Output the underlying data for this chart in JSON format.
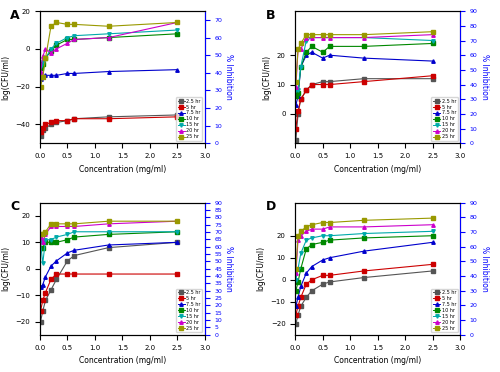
{
  "x": [
    0.01,
    0.05,
    0.1,
    0.2,
    0.3,
    0.5,
    0.625,
    1.25,
    2.5
  ],
  "panel_A": {
    "label": "A",
    "series": {
      "2.5 hr": {
        "color": "#555555",
        "marker": "s",
        "y": [
          -46,
          -43,
          -42,
          -40,
          -39,
          -38,
          -37,
          -36,
          -35
        ]
      },
      "5 hr": {
        "color": "#cc0000",
        "marker": "s",
        "y": [
          -44,
          -42,
          -40,
          -39,
          -38,
          -38,
          -37,
          -37,
          -36
        ]
      },
      "7.5 hr": {
        "color": "#0000cc",
        "marker": "^",
        "y": [
          -16,
          -15,
          -14,
          -14,
          -14,
          -13,
          -13,
          -12,
          -11
        ]
      },
      "10 hr": {
        "color": "#008800",
        "marker": "s",
        "y": [
          -10,
          -8,
          -5,
          -1,
          2,
          5,
          5,
          6,
          8
        ]
      },
      "15 hr": {
        "color": "#00aaaa",
        "marker": "v",
        "y": [
          -9,
          -7,
          -5,
          0,
          3,
          6,
          7,
          8,
          10
        ]
      },
      "20 hr": {
        "color": "#cc00cc",
        "marker": "^",
        "y": [
          -12,
          -4,
          0,
          -2,
          0,
          3,
          5,
          6,
          14
        ]
      },
      "25 hr": {
        "color": "#999900",
        "marker": "s",
        "y": [
          -20,
          -15,
          -5,
          12,
          14,
          13,
          13,
          12,
          14
        ]
      }
    },
    "ylim": [
      -50,
      20
    ],
    "yticks_left": [
      -40,
      -20,
      0,
      20
    ],
    "ylim_right": [
      0,
      75
    ],
    "yticks_right": [
      0,
      10,
      20,
      30,
      40,
      50,
      60,
      70
    ]
  },
  "panel_B": {
    "label": "B",
    "series": {
      "2.5 hr": {
        "color": "#555555",
        "marker": "s",
        "y": [
          -9,
          0,
          5,
          8,
          10,
          11,
          11,
          12,
          12
        ]
      },
      "5 hr": {
        "color": "#cc0000",
        "marker": "s",
        "y": [
          -5,
          1,
          5,
          8,
          10,
          10,
          10,
          11,
          13
        ]
      },
      "7.5 hr": {
        "color": "#0000cc",
        "marker": "^",
        "y": [
          3,
          6,
          16,
          20,
          21,
          19,
          20,
          19,
          18
        ]
      },
      "10 hr": {
        "color": "#008800",
        "marker": "s",
        "y": [
          6,
          7,
          16,
          21,
          23,
          21,
          23,
          23,
          24
        ]
      },
      "15 hr": {
        "color": "#00aaaa",
        "marker": "v",
        "y": [
          8,
          8,
          16,
          25,
          26,
          26,
          26,
          26,
          25
        ]
      },
      "20 hr": {
        "color": "#cc00cc",
        "marker": "^",
        "y": [
          9,
          22,
          22,
          26,
          26,
          26,
          26,
          26,
          27
        ]
      },
      "25 hr": {
        "color": "#999900",
        "marker": "s",
        "y": [
          11,
          22,
          24,
          27,
          27,
          27,
          27,
          27,
          28
        ]
      }
    },
    "ylim": [
      -10,
      35
    ],
    "yticks_left": [
      0,
      10,
      20
    ],
    "ylim_right": [
      0,
      90
    ],
    "yticks_right": [
      0,
      10,
      20,
      30,
      40,
      50,
      60,
      70,
      80,
      90
    ]
  },
  "panel_C": {
    "label": "C",
    "series": {
      "2.5 hr": {
        "color": "#555555",
        "marker": "s",
        "y": [
          -20,
          -16,
          -12,
          -8,
          -4,
          3,
          5,
          8,
          10
        ]
      },
      "5 hr": {
        "color": "#cc0000",
        "marker": "s",
        "y": [
          -16,
          -12,
          -9,
          -4,
          -2,
          -2,
          -2,
          -2,
          -2
        ]
      },
      "7.5 hr": {
        "color": "#0000cc",
        "marker": "^",
        "y": [
          -7,
          -6,
          -3,
          1,
          3,
          6,
          7,
          9,
          10
        ]
      },
      "10 hr": {
        "color": "#008800",
        "marker": "s",
        "y": [
          8,
          8,
          10,
          10,
          10,
          11,
          12,
          13,
          14
        ]
      },
      "15 hr": {
        "color": "#00aaaa",
        "marker": "v",
        "y": [
          10,
          2,
          11,
          11,
          12,
          13,
          14,
          14,
          14
        ]
      },
      "20 hr": {
        "color": "#cc00cc",
        "marker": "^",
        "y": [
          12,
          10,
          13,
          16,
          16,
          16,
          16,
          17,
          18
        ]
      },
      "25 hr": {
        "color": "#999900",
        "marker": "s",
        "y": [
          13,
          13,
          14,
          17,
          17,
          17,
          17,
          18,
          18
        ]
      }
    },
    "ylim": [
      -25,
      25
    ],
    "yticks_left": [
      -20,
      -10,
      0,
      10,
      20
    ],
    "ylim_right": [
      0,
      90
    ],
    "yticks_right": [
      0,
      5,
      10,
      15,
      20,
      25,
      30,
      35,
      40,
      45,
      50,
      55,
      60,
      65,
      70,
      75,
      80,
      85,
      90
    ]
  },
  "panel_D": {
    "label": "D",
    "series": {
      "2.5 hr": {
        "color": "#555555",
        "marker": "s",
        "y": [
          -20,
          -16,
          -12,
          -8,
          -5,
          -2,
          -1,
          1,
          4
        ]
      },
      "5 hr": {
        "color": "#cc0000",
        "marker": "s",
        "y": [
          -16,
          -12,
          -8,
          -2,
          0,
          2,
          2,
          4,
          7
        ]
      },
      "7.5 hr": {
        "color": "#0000cc",
        "marker": "^",
        "y": [
          -12,
          -8,
          -3,
          3,
          6,
          9,
          10,
          13,
          17
        ]
      },
      "10 hr": {
        "color": "#008800",
        "marker": "s",
        "y": [
          -5,
          -1,
          5,
          14,
          16,
          17,
          18,
          19,
          20
        ]
      },
      "15 hr": {
        "color": "#00aaaa",
        "marker": "v",
        "y": [
          0,
          5,
          12,
          18,
          19,
          20,
          20,
          21,
          22
        ]
      },
      "20 hr": {
        "color": "#cc00cc",
        "marker": "^",
        "y": [
          3,
          18,
          20,
          22,
          23,
          23,
          24,
          24,
          25
        ]
      },
      "25 hr": {
        "color": "#999900",
        "marker": "s",
        "y": [
          5,
          20,
          22,
          24,
          25,
          26,
          26,
          27,
          28
        ]
      }
    },
    "ylim": [
      -25,
      35
    ],
    "yticks_left": [
      -20,
      -10,
      0,
      10,
      20
    ],
    "ylim_right": [
      0,
      90
    ],
    "yticks_right": [
      0,
      10,
      20,
      30,
      40,
      50,
      60,
      70,
      80,
      90
    ]
  },
  "xlabel": "Concentration (mg/ml)",
  "ylabel_left": "log(CFU/ml)",
  "ylabel_right": "% Inhibition",
  "legend_labels": [
    "2.5 hr",
    "5 hr",
    "7.5 hr",
    "10 hr",
    "15 hr",
    "20 hr",
    "25 hr"
  ],
  "legend_colors": [
    "#555555",
    "#cc0000",
    "#0000cc",
    "#008800",
    "#00aaaa",
    "#cc00cc",
    "#999900"
  ],
  "legend_markers": [
    "s",
    "s",
    "^",
    "s",
    "v",
    "^",
    "s"
  ]
}
